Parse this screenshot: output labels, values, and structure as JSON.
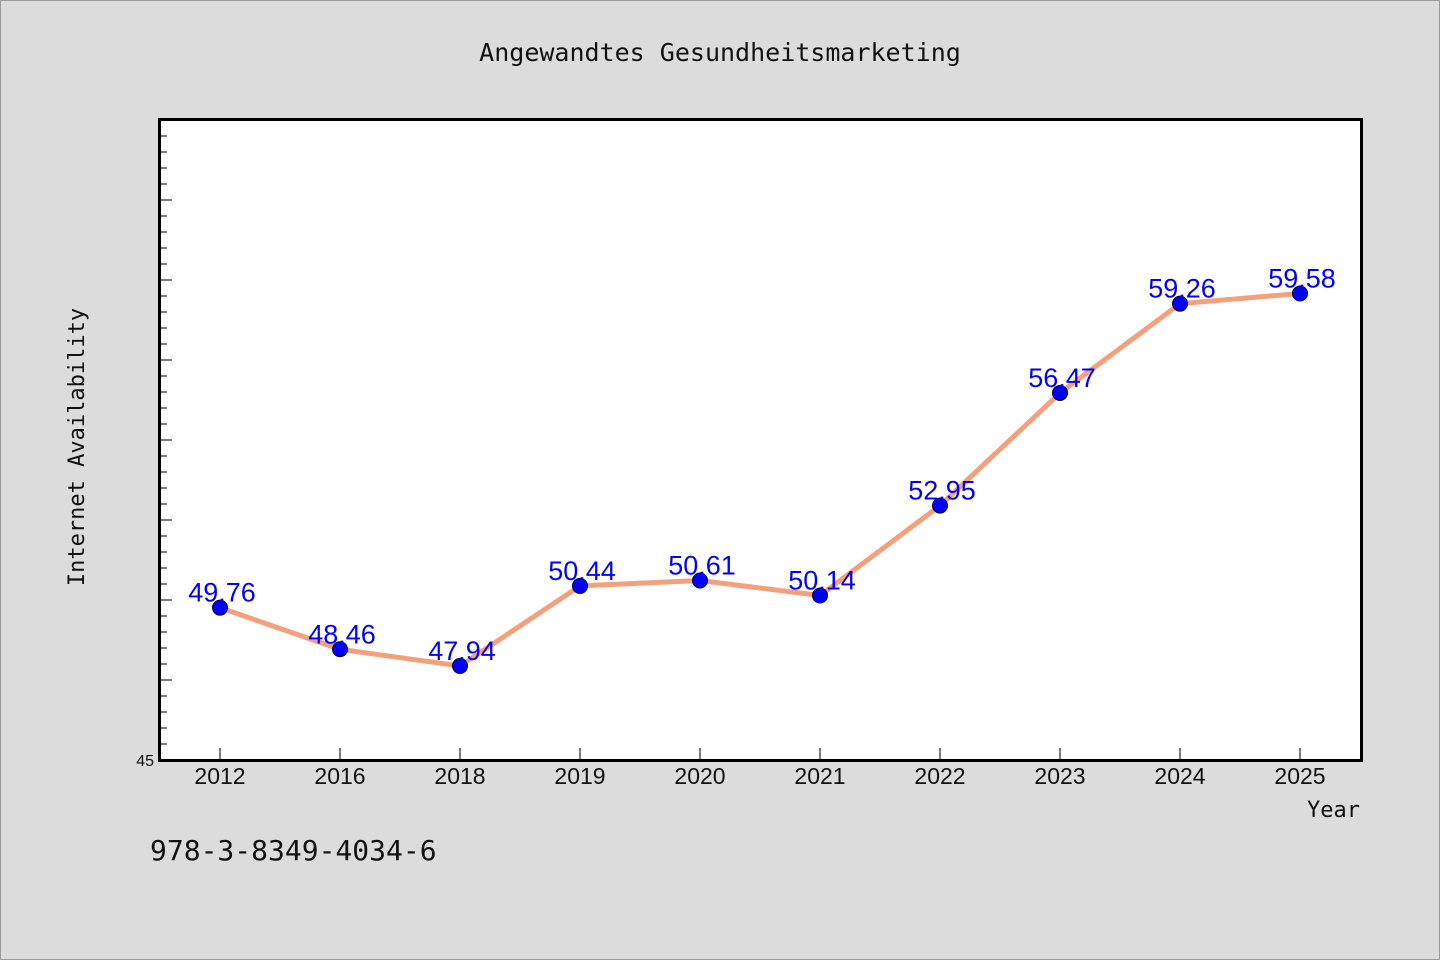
{
  "chart_data": {
    "type": "line",
    "title": "Angewandtes Gesundheitsmarketing",
    "xlabel": "Year",
    "ylabel": "Internet Availability",
    "categories": [
      "2012",
      "2016",
      "2018",
      "2019",
      "2020",
      "2021",
      "2022",
      "2023",
      "2024",
      "2025"
    ],
    "series": [
      {
        "values": [
          49.76,
          48.46,
          47.94,
          50.44,
          50.61,
          50.14,
          52.95,
          56.47,
          59.26,
          59.58
        ],
        "data_labels": [
          "49.76",
          "48.46",
          "47.94",
          "50.44",
          "50.61",
          "50.14",
          "52.95",
          "56.47",
          "59.26",
          "59.58"
        ],
        "line_color": "#f4a07c",
        "marker_color": "#0000ff"
      }
    ],
    "ylim": [
      45,
      65
    ],
    "y_tick_labels": [
      "45"
    ],
    "grid": false,
    "legend": "none",
    "data_label_color": "#0000ff"
  },
  "footer": {
    "isbn": "978-3-8349-4034-6"
  }
}
